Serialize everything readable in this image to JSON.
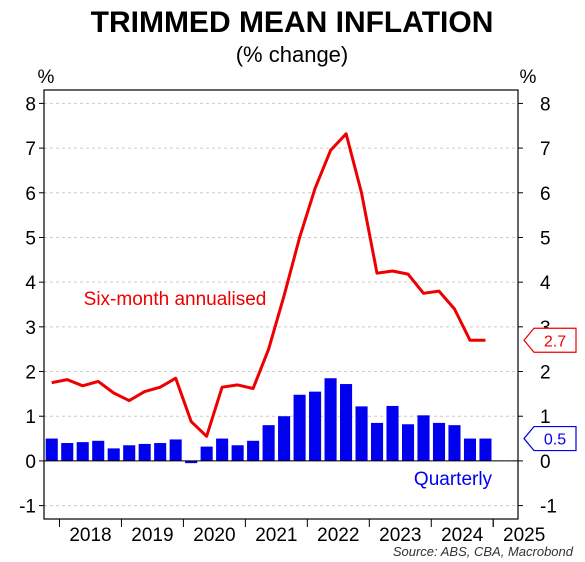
{
  "chart_data": {
    "type": "bar+line",
    "title": "TRIMMED MEAN INFLATION",
    "subtitle": "(% change)",
    "ylabel_left": "%",
    "ylabel_right": "%",
    "ylim": [
      -1.3,
      8.3
    ],
    "yticks": [
      -1,
      0,
      1,
      2,
      3,
      4,
      5,
      6,
      7,
      8
    ],
    "x_tick_labels": [
      "2018",
      "2019",
      "2020",
      "2021",
      "2022",
      "2023",
      "2024",
      "2025"
    ],
    "grid": true,
    "source": "Source: ABS, CBA, Macrobond",
    "colors": {
      "quarterly": "#0000ee",
      "annualised": "#ee0000",
      "grid": "#cccccc"
    },
    "series": [
      {
        "name": "Quarterly",
        "type": "bar",
        "x": [
          "2017-Q4",
          "2018-Q1",
          "2018-Q2",
          "2018-Q3",
          "2018-Q4",
          "2019-Q1",
          "2019-Q2",
          "2019-Q3",
          "2019-Q4",
          "2020-Q1",
          "2020-Q2",
          "2020-Q3",
          "2020-Q4",
          "2021-Q1",
          "2021-Q2",
          "2021-Q3",
          "2021-Q4",
          "2022-Q1",
          "2022-Q2",
          "2022-Q3",
          "2022-Q4",
          "2023-Q1",
          "2023-Q2",
          "2023-Q3",
          "2023-Q4",
          "2024-Q1",
          "2024-Q2",
          "2024-Q3",
          "2024-Q4"
        ],
        "values": [
          0.5,
          0.4,
          0.42,
          0.45,
          0.28,
          0.35,
          0.38,
          0.4,
          0.48,
          -0.05,
          0.32,
          0.5,
          0.35,
          0.45,
          0.8,
          1.0,
          1.48,
          1.55,
          1.85,
          1.72,
          1.22,
          0.85,
          1.23,
          0.82,
          1.02,
          0.85,
          0.8,
          0.5,
          0.5
        ]
      },
      {
        "name": "Six-month annualised",
        "type": "line",
        "x": [
          "2017-Q4",
          "2018-Q1",
          "2018-Q2",
          "2018-Q3",
          "2018-Q4",
          "2019-Q1",
          "2019-Q2",
          "2019-Q3",
          "2019-Q4",
          "2020-Q1",
          "2020-Q2",
          "2020-Q3",
          "2020-Q4",
          "2021-Q1",
          "2021-Q2",
          "2021-Q3",
          "2021-Q4",
          "2022-Q1",
          "2022-Q2",
          "2022-Q3",
          "2022-Q4",
          "2023-Q1",
          "2023-Q2",
          "2023-Q3",
          "2023-Q4",
          "2024-Q1",
          "2024-Q2",
          "2024-Q3",
          "2024-Q4"
        ],
        "values": [
          1.75,
          1.82,
          1.68,
          1.78,
          1.52,
          1.35,
          1.55,
          1.65,
          1.85,
          0.88,
          0.55,
          1.65,
          1.7,
          1.62,
          2.5,
          3.7,
          5.0,
          6.1,
          6.95,
          7.32,
          6.0,
          4.2,
          4.25,
          4.18,
          3.75,
          3.8,
          3.4,
          2.7,
          2.7
        ]
      }
    ],
    "annotations": {
      "line_label": "Six-month annualised",
      "bar_label": "Quarterly",
      "line_end_value": "2.7",
      "bar_end_value": "0.5"
    }
  }
}
